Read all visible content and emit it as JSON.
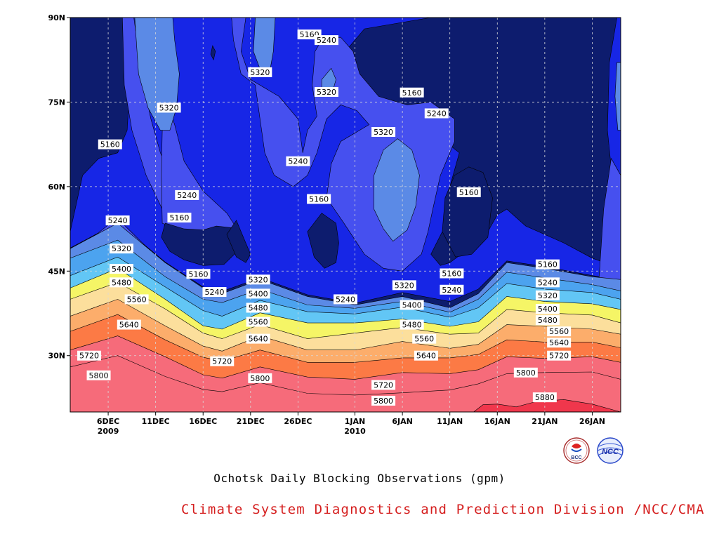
{
  "title": "Ochotsk Daily Blocking Observations (gpm)",
  "credit": "Climate System Diagnostics and Prediction Division /NCC/CMA",
  "logos": {
    "bcc": "BCC",
    "ncc": "NCC"
  },
  "chart_data": {
    "type": "contour",
    "variable": "500hPa geopotential height",
    "unit": "gpm",
    "x_axis": {
      "range_days": [
        0,
        58
      ],
      "ticks": [
        {
          "day": 4,
          "label": "6DEC",
          "sub": "2009"
        },
        {
          "day": 9,
          "label": "11DEC",
          "sub": ""
        },
        {
          "day": 14,
          "label": "16DEC",
          "sub": ""
        },
        {
          "day": 19,
          "label": "21DEC",
          "sub": ""
        },
        {
          "day": 24,
          "label": "26DEC",
          "sub": ""
        },
        {
          "day": 30,
          "label": "1JAN",
          "sub": "2010"
        },
        {
          "day": 35,
          "label": "6JAN",
          "sub": ""
        },
        {
          "day": 40,
          "label": "11JAN",
          "sub": ""
        },
        {
          "day": 45,
          "label": "16JAN",
          "sub": ""
        },
        {
          "day": 50,
          "label": "21JAN",
          "sub": ""
        },
        {
          "day": 55,
          "label": "26JAN",
          "sub": ""
        }
      ]
    },
    "y_axis": {
      "range": [
        20,
        90
      ],
      "ticks": [
        {
          "v": 30,
          "label": "30N"
        },
        {
          "v": 45,
          "label": "45N"
        },
        {
          "v": 60,
          "label": "60N"
        },
        {
          "v": 75,
          "label": "75N"
        },
        {
          "v": 90,
          "label": "90N"
        }
      ]
    },
    "grid": true,
    "levels": [
      5160,
      5240,
      5320,
      5400,
      5480,
      5560,
      5640,
      5720,
      5800,
      5880
    ],
    "colors": {
      "below": "#0d1c6e",
      "5160": "#1726e6",
      "5240": "#4650ef",
      "5320": "#5b8ae6",
      "5400": "#4ca3ef",
      "5480": "#62c6f5",
      "5560": "#f5f566",
      "5640": "#fcdf9c",
      "5720": "#fcad6b",
      "5800": "#fc7a45",
      "5880": "#f66b7a",
      "above": "#f0374c"
    },
    "band_levels_lat": [
      {
        "day": 0,
        "lat": [
          49.0,
          47.3,
          44.2,
          42.0,
          40.0,
          37.0,
          34.3,
          31.0,
          28.0
        ]
      },
      {
        "day": 5,
        "lat": [
          53.5,
          50.5,
          47.5,
          45.5,
          43.0,
          40.0,
          37.3,
          33.5,
          30.0
        ]
      },
      {
        "day": 10,
        "lat": [
          46.5,
          44.0,
          42.2,
          40.0,
          38.3,
          35.3,
          32.8,
          29.8,
          26.3
        ]
      },
      {
        "day": 14,
        "lat": [
          42.0,
          40.0,
          38.0,
          35.3,
          34.0,
          31.7,
          29.7,
          26.6,
          24.0
        ]
      },
      {
        "day": 16,
        "lat": [
          41.0,
          39.4,
          37.0,
          34.7,
          33.0,
          30.8,
          29.0,
          26.0,
          23.6
        ]
      },
      {
        "day": 20,
        "lat": [
          43.5,
          41.8,
          39.8,
          37.6,
          35.5,
          33.5,
          31.0,
          28.0,
          25.2
        ]
      },
      {
        "day": 25,
        "lat": [
          40.5,
          39.0,
          37.8,
          35.8,
          33.0,
          31.0,
          28.8,
          26.2,
          23.3
        ]
      },
      {
        "day": 30,
        "lat": [
          39.0,
          38.4,
          37.4,
          35.8,
          34.0,
          31.0,
          28.8,
          25.8,
          23.0
        ]
      },
      {
        "day": 35,
        "lat": [
          40.5,
          39.6,
          38.6,
          36.5,
          35.0,
          32.5,
          29.6,
          27.0,
          23.4
        ]
      },
      {
        "day": 40,
        "lat": [
          38.5,
          37.7,
          36.8,
          35.2,
          33.8,
          31.3,
          29.6,
          26.8,
          23.9
        ]
      },
      {
        "day": 43,
        "lat": [
          41.0,
          40.0,
          38.5,
          36.0,
          34.0,
          32.0,
          30.2,
          27.5,
          25.0
        ]
      },
      {
        "day": 46,
        "lat": [
          46.5,
          44.8,
          42.8,
          40.5,
          38.2,
          35.5,
          32.8,
          29.8,
          26.8
        ]
      },
      {
        "day": 50,
        "lat": [
          45.5,
          43.8,
          41.8,
          39.6,
          37.6,
          35.2,
          32.4,
          29.5,
          27.0
        ]
      },
      {
        "day": 55,
        "lat": [
          44.0,
          42.6,
          41.2,
          39.2,
          37.2,
          34.7,
          32.4,
          29.8,
          27.1
        ]
      },
      {
        "day": 58,
        "lat": [
          43.5,
          41.5,
          40.0,
          38.2,
          35.8,
          33.8,
          31.4,
          28.8,
          25.8
        ]
      }
    ],
    "contour_labels": [
      {
        "day": 4.2,
        "lat": 67.5,
        "v": "5160"
      },
      {
        "day": 5.0,
        "lat": 54.0,
        "v": "5240"
      },
      {
        "day": 5.4,
        "lat": 49.0,
        "v": "5320"
      },
      {
        "day": 5.4,
        "lat": 45.4,
        "v": "5400"
      },
      {
        "day": 5.4,
        "lat": 43.0,
        "v": "5480"
      },
      {
        "day": 7.0,
        "lat": 40.0,
        "v": "5560"
      },
      {
        "day": 6.2,
        "lat": 35.5,
        "v": "5640"
      },
      {
        "day": 2.0,
        "lat": 30.0,
        "v": "5720"
      },
      {
        "day": 3.0,
        "lat": 26.5,
        "v": "5800"
      },
      {
        "day": 10.4,
        "lat": 74.0,
        "v": "5320"
      },
      {
        "day": 12.3,
        "lat": 58.5,
        "v": "5240"
      },
      {
        "day": 11.5,
        "lat": 54.5,
        "v": "5160"
      },
      {
        "day": 13.5,
        "lat": 44.5,
        "v": "5160"
      },
      {
        "day": 15.2,
        "lat": 41.3,
        "v": "5240"
      },
      {
        "day": 19.8,
        "lat": 43.5,
        "v": "5320"
      },
      {
        "day": 19.8,
        "lat": 41.0,
        "v": "5400"
      },
      {
        "day": 19.8,
        "lat": 38.5,
        "v": "5480"
      },
      {
        "day": 19.8,
        "lat": 36.0,
        "v": "5560"
      },
      {
        "day": 19.8,
        "lat": 33.0,
        "v": "5640"
      },
      {
        "day": 16.0,
        "lat": 29.0,
        "v": "5720"
      },
      {
        "day": 20.0,
        "lat": 26.0,
        "v": "5800"
      },
      {
        "day": 20.0,
        "lat": 80.3,
        "v": "5320"
      },
      {
        "day": 25.2,
        "lat": 87.0,
        "v": "5160"
      },
      {
        "day": 27.0,
        "lat": 86.0,
        "v": "5240"
      },
      {
        "day": 27.0,
        "lat": 76.8,
        "v": "5320"
      },
      {
        "day": 24.0,
        "lat": 64.5,
        "v": "5240"
      },
      {
        "day": 26.2,
        "lat": 57.8,
        "v": "5160"
      },
      {
        "day": 29.0,
        "lat": 40.0,
        "v": "5240"
      },
      {
        "day": 33.0,
        "lat": 69.7,
        "v": "5320"
      },
      {
        "day": 36.0,
        "lat": 76.7,
        "v": "5160"
      },
      {
        "day": 38.6,
        "lat": 73.0,
        "v": "5240"
      },
      {
        "day": 42.0,
        "lat": 59.0,
        "v": "5160"
      },
      {
        "day": 35.2,
        "lat": 42.5,
        "v": "5320"
      },
      {
        "day": 36.0,
        "lat": 39.0,
        "v": "5400"
      },
      {
        "day": 36.0,
        "lat": 35.5,
        "v": "5480"
      },
      {
        "day": 37.3,
        "lat": 33.0,
        "v": "5560"
      },
      {
        "day": 37.5,
        "lat": 30.0,
        "v": "5640"
      },
      {
        "day": 33.0,
        "lat": 24.8,
        "v": "5720"
      },
      {
        "day": 33.0,
        "lat": 22.0,
        "v": "5800"
      },
      {
        "day": 40.2,
        "lat": 44.6,
        "v": "5160"
      },
      {
        "day": 40.2,
        "lat": 41.7,
        "v": "5240"
      },
      {
        "day": 50.3,
        "lat": 46.2,
        "v": "5160"
      },
      {
        "day": 50.3,
        "lat": 43.0,
        "v": "5240"
      },
      {
        "day": 50.3,
        "lat": 40.7,
        "v": "5320"
      },
      {
        "day": 50.3,
        "lat": 38.3,
        "v": "5400"
      },
      {
        "day": 50.3,
        "lat": 36.3,
        "v": "5480"
      },
      {
        "day": 51.5,
        "lat": 34.3,
        "v": "5560"
      },
      {
        "day": 51.5,
        "lat": 32.3,
        "v": "5640"
      },
      {
        "day": 51.5,
        "lat": 30.0,
        "v": "5720"
      },
      {
        "day": 48.0,
        "lat": 27.0,
        "v": "5800"
      },
      {
        "day": 50.0,
        "lat": 22.6,
        "v": "5880"
      }
    ]
  }
}
